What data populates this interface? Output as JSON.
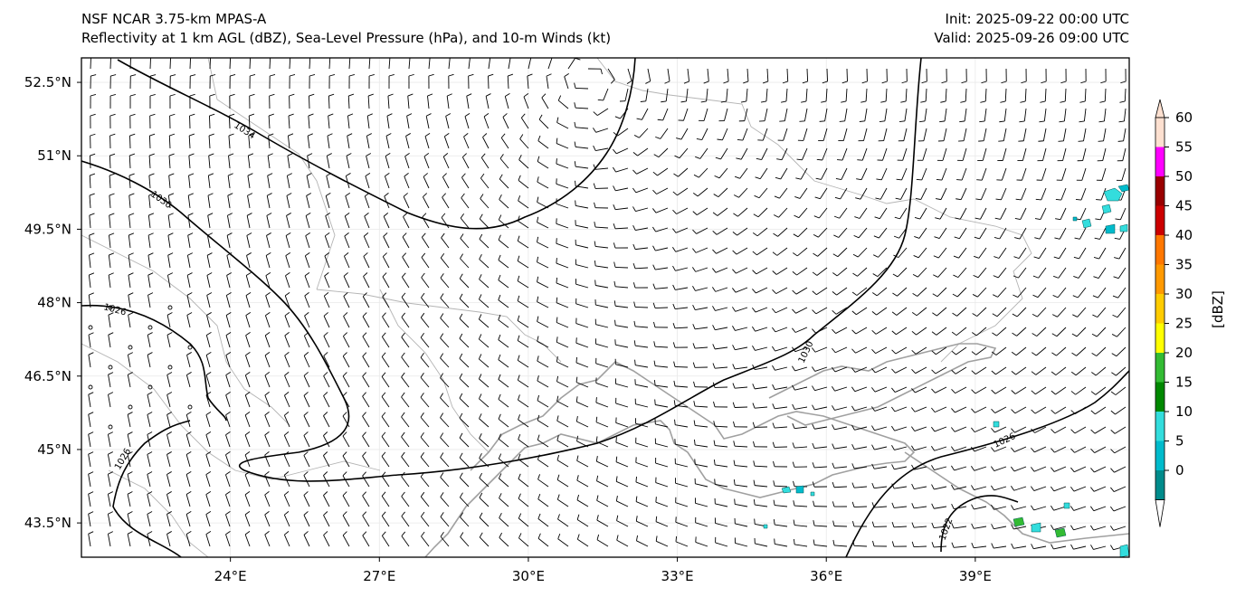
{
  "header": {
    "model": "NSF NCAR 3.75-km MPAS-A",
    "fields": "Reflectivity at 1 km AGL (dBZ), Sea-Level Pressure (hPa), and 10-m Winds (kt)",
    "init": "Init: 2025-09-22 00:00 UTC",
    "valid": "Valid: 2025-09-26 09:00 UTC"
  },
  "map": {
    "lon_range": [
      21.0,
      42.1
    ],
    "lat_range": [
      42.8,
      53.0
    ],
    "lat_ticks": [
      "52.5°N",
      "51°N",
      "49.5°N",
      "48°N",
      "46.5°N",
      "45°N",
      "43.5°N"
    ],
    "lat_tick_values": [
      52.5,
      51.0,
      49.5,
      48.0,
      46.5,
      45.0,
      43.5
    ],
    "lon_ticks": [
      "24°E",
      "27°E",
      "30°E",
      "33°E",
      "36°E",
      "39°E"
    ],
    "lon_tick_values": [
      24,
      27,
      30,
      33,
      36,
      39
    ],
    "isobar_labels": [
      "1034",
      "1030",
      "1026",
      "1026",
      "1030",
      "1026",
      "1022"
    ]
  },
  "colorbar": {
    "label": "[dBZ]",
    "ticks": [
      "60",
      "55",
      "50",
      "45",
      "40",
      "35",
      "30",
      "25",
      "20",
      "15",
      "10",
      "5",
      "0"
    ],
    "colors": [
      "#fde0d0",
      "#ff00ff",
      "#990000",
      "#cc0000",
      "#ff7700",
      "#ff9900",
      "#ffcc00",
      "#ffff00",
      "#33bb33",
      "#008800",
      "#33dddd",
      "#00bbcc",
      "#008b8b"
    ]
  }
}
